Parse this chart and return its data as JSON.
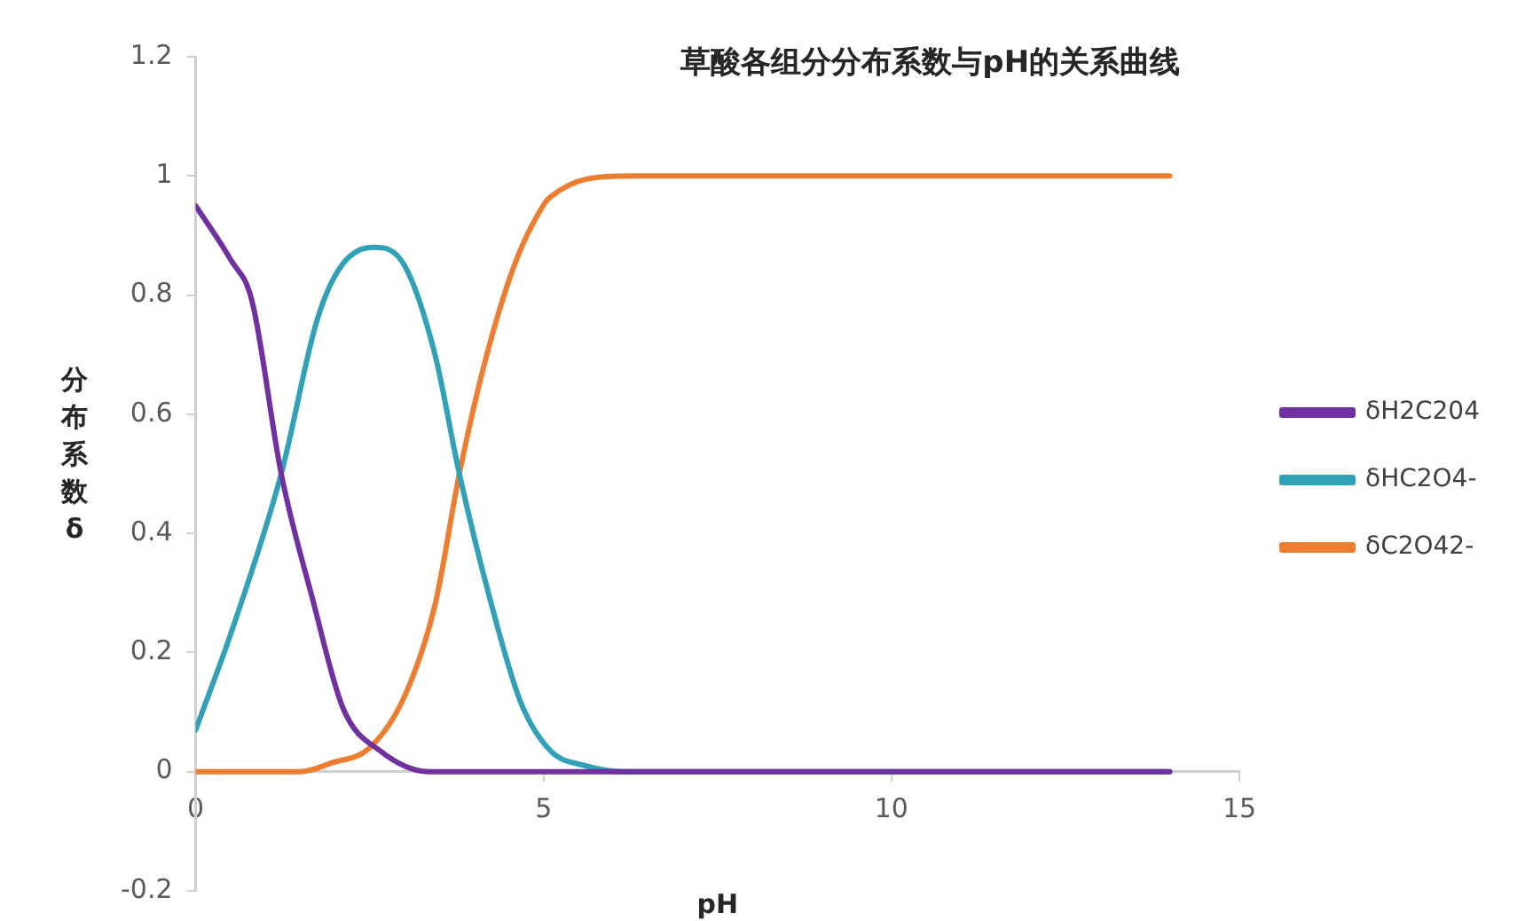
{
  "chart_data": {
    "type": "line",
    "title": "草酸各组分分布系数与pH的关系曲线",
    "xlabel": "pH",
    "ylabel": "分布系数δ",
    "xlim": [
      0,
      15
    ],
    "xticks": [
      0,
      5,
      10,
      15
    ],
    "ylim": [
      -0.2,
      1.2
    ],
    "yticks": [
      -0.2,
      0,
      0.2,
      0.4,
      0.6,
      0.8,
      1,
      1.2
    ],
    "grid": false,
    "legend": "right",
    "marker": "none",
    "line_style": "solid",
    "series": [
      {
        "name": "δH2C204",
        "color": "#7030a0",
        "x": [
          0,
          0.5,
          0.81,
          1.23,
          1.68,
          2.12,
          2.65,
          3.35,
          5,
          7,
          14
        ],
        "values": [
          0.95,
          0.86,
          0.79,
          0.5,
          0.29,
          0.106,
          0.035,
          0,
          0,
          0,
          0
        ]
      },
      {
        "name": "δHC2O4-",
        "color": "#31a1b8",
        "x": [
          0,
          0.53,
          1.23,
          1.75,
          2.1,
          2.56,
          3.0,
          3.44,
          3.79,
          4.23,
          4.67,
          5.1,
          5.6,
          6.16,
          7,
          14
        ],
        "values": [
          0.07,
          0.24,
          0.5,
          0.76,
          0.85,
          0.88,
          0.85,
          0.7,
          0.5,
          0.29,
          0.117,
          0.035,
          0.01,
          0,
          0,
          0
        ]
      },
      {
        "name": "δC2O42-",
        "color": "#ed7d31",
        "x": [
          0,
          1.5,
          1.96,
          2.5,
          3.0,
          3.44,
          3.79,
          4.14,
          4.58,
          5.02,
          5.1,
          5.63,
          6.3,
          14
        ],
        "values": [
          0,
          0,
          0.015,
          0.04,
          0.126,
          0.28,
          0.5,
          0.68,
          0.85,
          0.955,
          0.965,
          0.995,
          1,
          1
        ]
      }
    ]
  }
}
